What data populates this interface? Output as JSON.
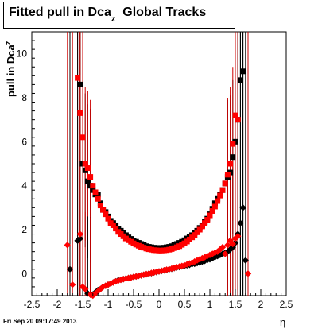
{
  "title": {
    "main": "Fitted pull in Dca",
    "sub": "z",
    "tail": "  Global Tracks"
  },
  "ylabel": {
    "main": "pull in Dca",
    "sub": "z"
  },
  "xlabel": "η",
  "footer": "Fri Sep 20 09:17:49 2013",
  "chart_data": {
    "type": "scatter",
    "title": "Fitted pull in Dca_z  Global Tracks",
    "xlabel": "η",
    "ylabel": "pull in Dca_z",
    "xlim": [
      -2.5,
      2.5
    ],
    "ylim": [
      -1.0,
      11.0
    ],
    "xticks": [
      -2.5,
      -2,
      -1.5,
      -1,
      -0.5,
      0,
      0.5,
      1,
      1.5,
      2,
      2.5
    ],
    "xtick_labels": [
      "-2.5",
      "-2",
      "-1.5",
      "-1",
      "-0.5",
      "0",
      "0.5",
      "1",
      "1.5",
      "2",
      "2.5"
    ],
    "yticks": [
      0,
      2,
      4,
      6,
      8,
      10
    ],
    "ytick_labels": [
      "0",
      "2",
      "4",
      "6",
      "8",
      "10"
    ],
    "grid": false,
    "colors": {
      "black": "#000000",
      "red": "#ff0000"
    },
    "series": [
      {
        "marker": "square",
        "color": "#000000",
        "x": [
          -1.55,
          -1.5,
          -1.45,
          -1.4,
          -1.35,
          -1.3,
          -1.25,
          -1.2,
          -1.15,
          -1.1,
          -1.05,
          -1.0,
          -0.95,
          -0.9,
          -0.85,
          -0.8,
          -0.75,
          -0.7,
          -0.65,
          -0.6,
          -0.55,
          -0.5,
          -0.45,
          -0.4,
          -0.35,
          -0.3,
          -0.25,
          -0.2,
          -0.15,
          -0.1,
          -0.05,
          0.0,
          0.05,
          0.1,
          0.15,
          0.2,
          0.25,
          0.3,
          0.35,
          0.4,
          0.45,
          0.5,
          0.55,
          0.6,
          0.65,
          0.7,
          0.75,
          0.8,
          0.85,
          0.9,
          0.95,
          1.0,
          1.05,
          1.1,
          1.15,
          1.2,
          1.25,
          1.3,
          1.35,
          1.4,
          1.45,
          1.5,
          1.55,
          1.6,
          1.65
        ],
        "y": [
          8.6,
          5.0,
          4.7,
          4.2,
          4.0,
          3.8,
          3.6,
          3.6,
          3.2,
          2.9,
          2.8,
          2.6,
          2.4,
          2.3,
          2.2,
          2.05,
          1.95,
          1.85,
          1.75,
          1.65,
          1.58,
          1.5,
          1.45,
          1.4,
          1.35,
          1.3,
          1.25,
          1.22,
          1.2,
          1.18,
          1.17,
          1.17,
          1.17,
          1.18,
          1.2,
          1.22,
          1.25,
          1.3,
          1.35,
          1.4,
          1.45,
          1.52,
          1.6,
          1.68,
          1.75,
          1.85,
          1.95,
          2.08,
          2.2,
          2.35,
          2.5,
          2.7,
          2.95,
          3.2,
          3.4,
          3.6,
          3.8,
          4.1,
          4.4,
          4.6,
          5.3,
          6.0,
          7.0,
          8.8,
          9.2
        ]
      },
      {
        "marker": "square",
        "color": "#ff0000",
        "x": [
          -1.6,
          -1.55,
          -1.5,
          -1.45,
          -1.4,
          -1.35,
          -1.3,
          -1.25,
          -1.2,
          -1.15,
          -1.1,
          -1.05,
          -1.0,
          -0.95,
          -0.9,
          -0.85,
          -0.8,
          -0.75,
          -0.7,
          -0.65,
          -0.6,
          -0.55,
          -0.5,
          -0.45,
          -0.4,
          -0.35,
          -0.3,
          -0.25,
          -0.2,
          -0.15,
          -0.1,
          -0.05,
          0.0,
          0.05,
          0.1,
          0.15,
          0.2,
          0.25,
          0.3,
          0.35,
          0.4,
          0.45,
          0.5,
          0.55,
          0.6,
          0.65,
          0.7,
          0.75,
          0.8,
          0.85,
          0.9,
          0.95,
          1.0,
          1.05,
          1.1,
          1.15,
          1.2,
          1.25,
          1.3,
          1.35,
          1.4,
          1.45,
          1.5,
          1.55
        ],
        "y": [
          8.9,
          7.3,
          6.2,
          5.0,
          4.8,
          4.4,
          4.0,
          3.7,
          3.4,
          3.1,
          2.9,
          2.7,
          2.5,
          2.3,
          2.2,
          2.05,
          1.9,
          1.8,
          1.7,
          1.6,
          1.52,
          1.45,
          1.38,
          1.32,
          1.27,
          1.22,
          1.18,
          1.14,
          1.11,
          1.09,
          1.07,
          1.06,
          1.05,
          1.05,
          1.06,
          1.07,
          1.09,
          1.12,
          1.16,
          1.2,
          1.25,
          1.31,
          1.38,
          1.46,
          1.55,
          1.65,
          1.76,
          1.88,
          2.0,
          2.15,
          2.3,
          2.45,
          2.65,
          2.85,
          3.05,
          3.3,
          3.55,
          3.8,
          4.1,
          4.5,
          5.0,
          5.9,
          7.2,
          7.0
        ]
      },
      {
        "marker": "diamond",
        "color": "#000000",
        "x": [
          -1.75,
          -1.6,
          -1.55,
          -1.4,
          -1.35,
          -1.3,
          -1.25,
          -1.2,
          -1.15,
          -1.1,
          -1.05,
          -1.0,
          -0.95,
          -0.9,
          -0.85,
          -0.8,
          -0.75,
          -0.7,
          -0.65,
          -0.6,
          -0.55,
          -0.5,
          -0.45,
          -0.4,
          -0.35,
          -0.3,
          -0.25,
          -0.2,
          -0.15,
          -0.1,
          -0.05,
          0.0,
          0.05,
          0.1,
          0.15,
          0.2,
          0.25,
          0.3,
          0.35,
          0.4,
          0.45,
          0.5,
          0.55,
          0.6,
          0.65,
          0.7,
          0.75,
          0.8,
          0.85,
          0.9,
          0.95,
          1.0,
          1.05,
          1.1,
          1.15,
          1.2,
          1.25,
          1.3,
          1.35,
          1.4,
          1.45,
          1.5,
          1.55,
          1.6,
          1.65,
          1.7
        ],
        "y": [
          0.2,
          1.5,
          1.6,
          -0.9,
          -0.95,
          -0.95,
          -0.85,
          -0.75,
          -0.7,
          -0.6,
          -0.55,
          -0.5,
          -0.45,
          -0.4,
          -0.35,
          -0.3,
          -0.28,
          -0.25,
          -0.22,
          -0.2,
          -0.18,
          -0.15,
          -0.13,
          -0.1,
          -0.08,
          -0.05,
          -0.03,
          0.0,
          0.02,
          0.05,
          0.07,
          0.1,
          0.12,
          0.15,
          0.17,
          0.2,
          0.22,
          0.25,
          0.28,
          0.3,
          0.33,
          0.35,
          0.38,
          0.4,
          0.43,
          0.45,
          0.48,
          0.5,
          0.55,
          0.58,
          0.62,
          0.65,
          0.7,
          0.75,
          0.8,
          0.85,
          0.9,
          0.95,
          1.0,
          1.1,
          1.2,
          1.4,
          1.8,
          2.3,
          3.0,
          0.6
        ]
      },
      {
        "marker": "diamond",
        "color": "#ff0000",
        "x": [
          -1.8,
          -1.7,
          -1.55,
          -1.5,
          -1.45,
          -1.35,
          -1.3,
          -1.25,
          -1.2,
          -1.15,
          -1.1,
          -1.05,
          -1.0,
          -0.95,
          -0.9,
          -0.85,
          -0.8,
          -0.75,
          -0.7,
          -0.65,
          -0.6,
          -0.55,
          -0.5,
          -0.45,
          -0.4,
          -0.35,
          -0.3,
          -0.25,
          -0.2,
          -0.15,
          -0.1,
          -0.05,
          0.0,
          0.05,
          0.1,
          0.15,
          0.2,
          0.25,
          0.3,
          0.35,
          0.4,
          0.45,
          0.5,
          0.55,
          0.6,
          0.65,
          0.7,
          0.75,
          0.8,
          0.85,
          0.9,
          0.95,
          1.0,
          1.05,
          1.1,
          1.15,
          1.2,
          1.25,
          1.3,
          1.35,
          1.4,
          1.45,
          1.5,
          1.55,
          1.75
        ],
        "y": [
          1.3,
          -0.5,
          1.8,
          -0.6,
          -0.7,
          -0.95,
          -1.0,
          -0.9,
          -0.8,
          -0.7,
          -0.6,
          -0.55,
          -0.5,
          -0.45,
          -0.4,
          -0.35,
          -0.32,
          -0.28,
          -0.25,
          -0.22,
          -0.2,
          -0.18,
          -0.15,
          -0.13,
          -0.1,
          -0.08,
          -0.05,
          -0.02,
          0.0,
          0.03,
          0.05,
          0.08,
          0.1,
          0.13,
          0.15,
          0.18,
          0.2,
          0.23,
          0.26,
          0.29,
          0.32,
          0.35,
          0.38,
          0.42,
          0.46,
          0.5,
          0.55,
          0.6,
          0.65,
          0.7,
          0.75,
          0.8,
          0.85,
          0.9,
          0.95,
          1.0,
          1.1,
          1.2,
          0.9,
          1.3,
          1.5,
          1.35,
          1.6,
          1.7,
          0.0
        ]
      }
    ]
  }
}
